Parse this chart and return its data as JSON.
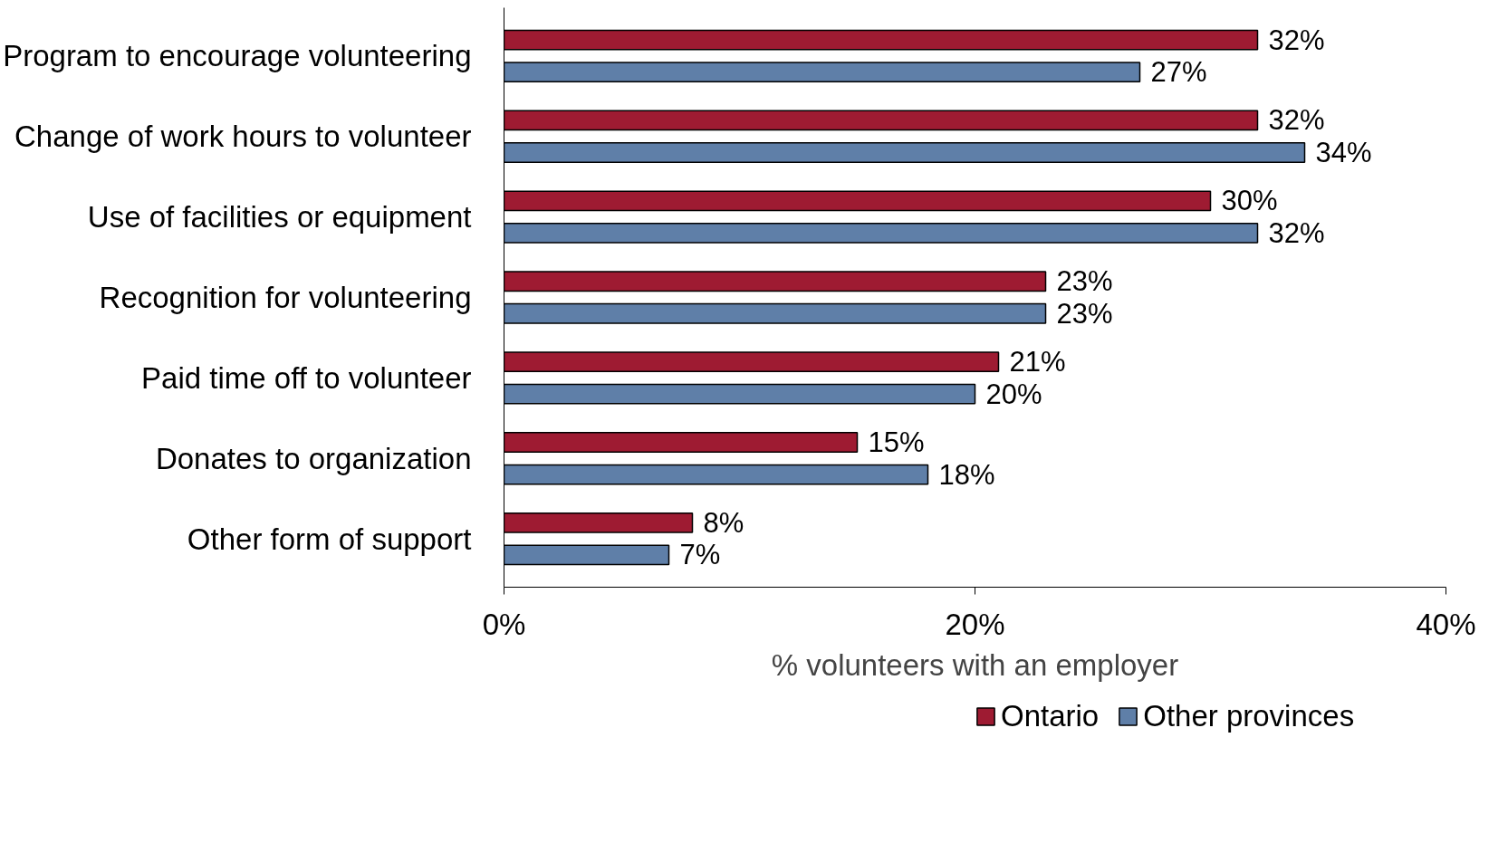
{
  "chart_data": {
    "type": "bar",
    "orientation": "horizontal",
    "xlabel": "% volunteers with an employer",
    "categories": [
      "Program to encourage volunteering",
      "Change of work hours to volunteer",
      "Use of facilities or equipment",
      "Recognition for volunteering",
      "Paid time off to volunteer",
      "Donates to organization",
      "Other form of support"
    ],
    "series": [
      {
        "name": "Ontario",
        "color": "#9e1b32",
        "values": [
          32,
          32,
          30,
          23,
          21,
          15,
          8
        ],
        "value_labels": [
          "32%",
          "32%",
          "30%",
          "23%",
          "21%",
          "15%",
          "8%"
        ]
      },
      {
        "name": "Other provinces",
        "color": "#5f7fa8",
        "values": [
          27,
          34,
          32,
          23,
          20,
          18,
          7
        ],
        "value_labels": [
          "27%",
          "34%",
          "32%",
          "23%",
          "20%",
          "18%",
          "7%"
        ]
      }
    ],
    "xlim": [
      0,
      40
    ],
    "xticks": [
      {
        "value": 0,
        "label": "0%"
      },
      {
        "value": 20,
        "label": "20%"
      },
      {
        "value": 40,
        "label": "40%"
      }
    ],
    "grid": false,
    "legend": "bottom"
  }
}
